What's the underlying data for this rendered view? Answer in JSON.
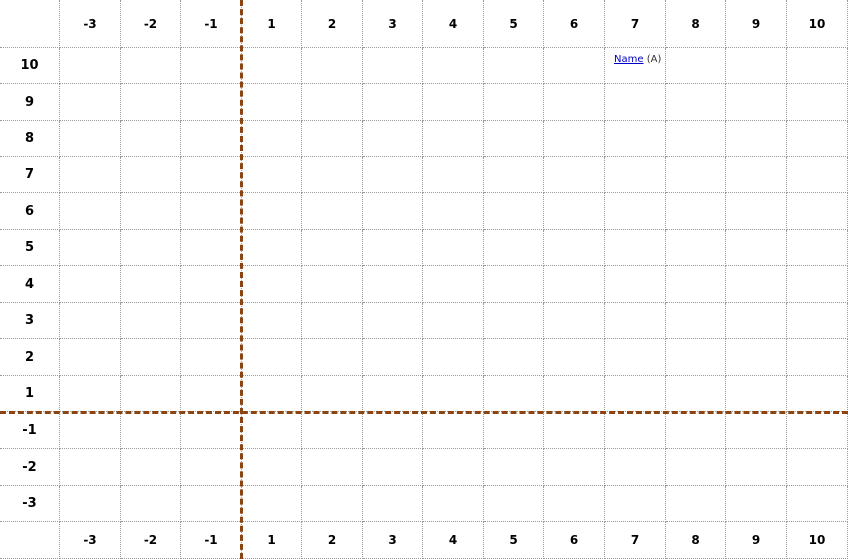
{
  "columns": [
    "-3",
    "-2",
    "-1",
    "1",
    "2",
    "3",
    "4",
    "5",
    "6",
    "7",
    "8",
    "9",
    "10"
  ],
  "rows": [
    "10",
    "9",
    "8",
    "7",
    "6",
    "5",
    "4",
    "3",
    "2",
    "1",
    "-1",
    "-2",
    "-3"
  ],
  "colors": {
    "axis": "#8b4513",
    "grid": "#9a9a9a",
    "link": "#0000cc"
  },
  "point": {
    "link_text": "Name",
    "suffix": "(A)",
    "x": 7,
    "y": 10
  }
}
